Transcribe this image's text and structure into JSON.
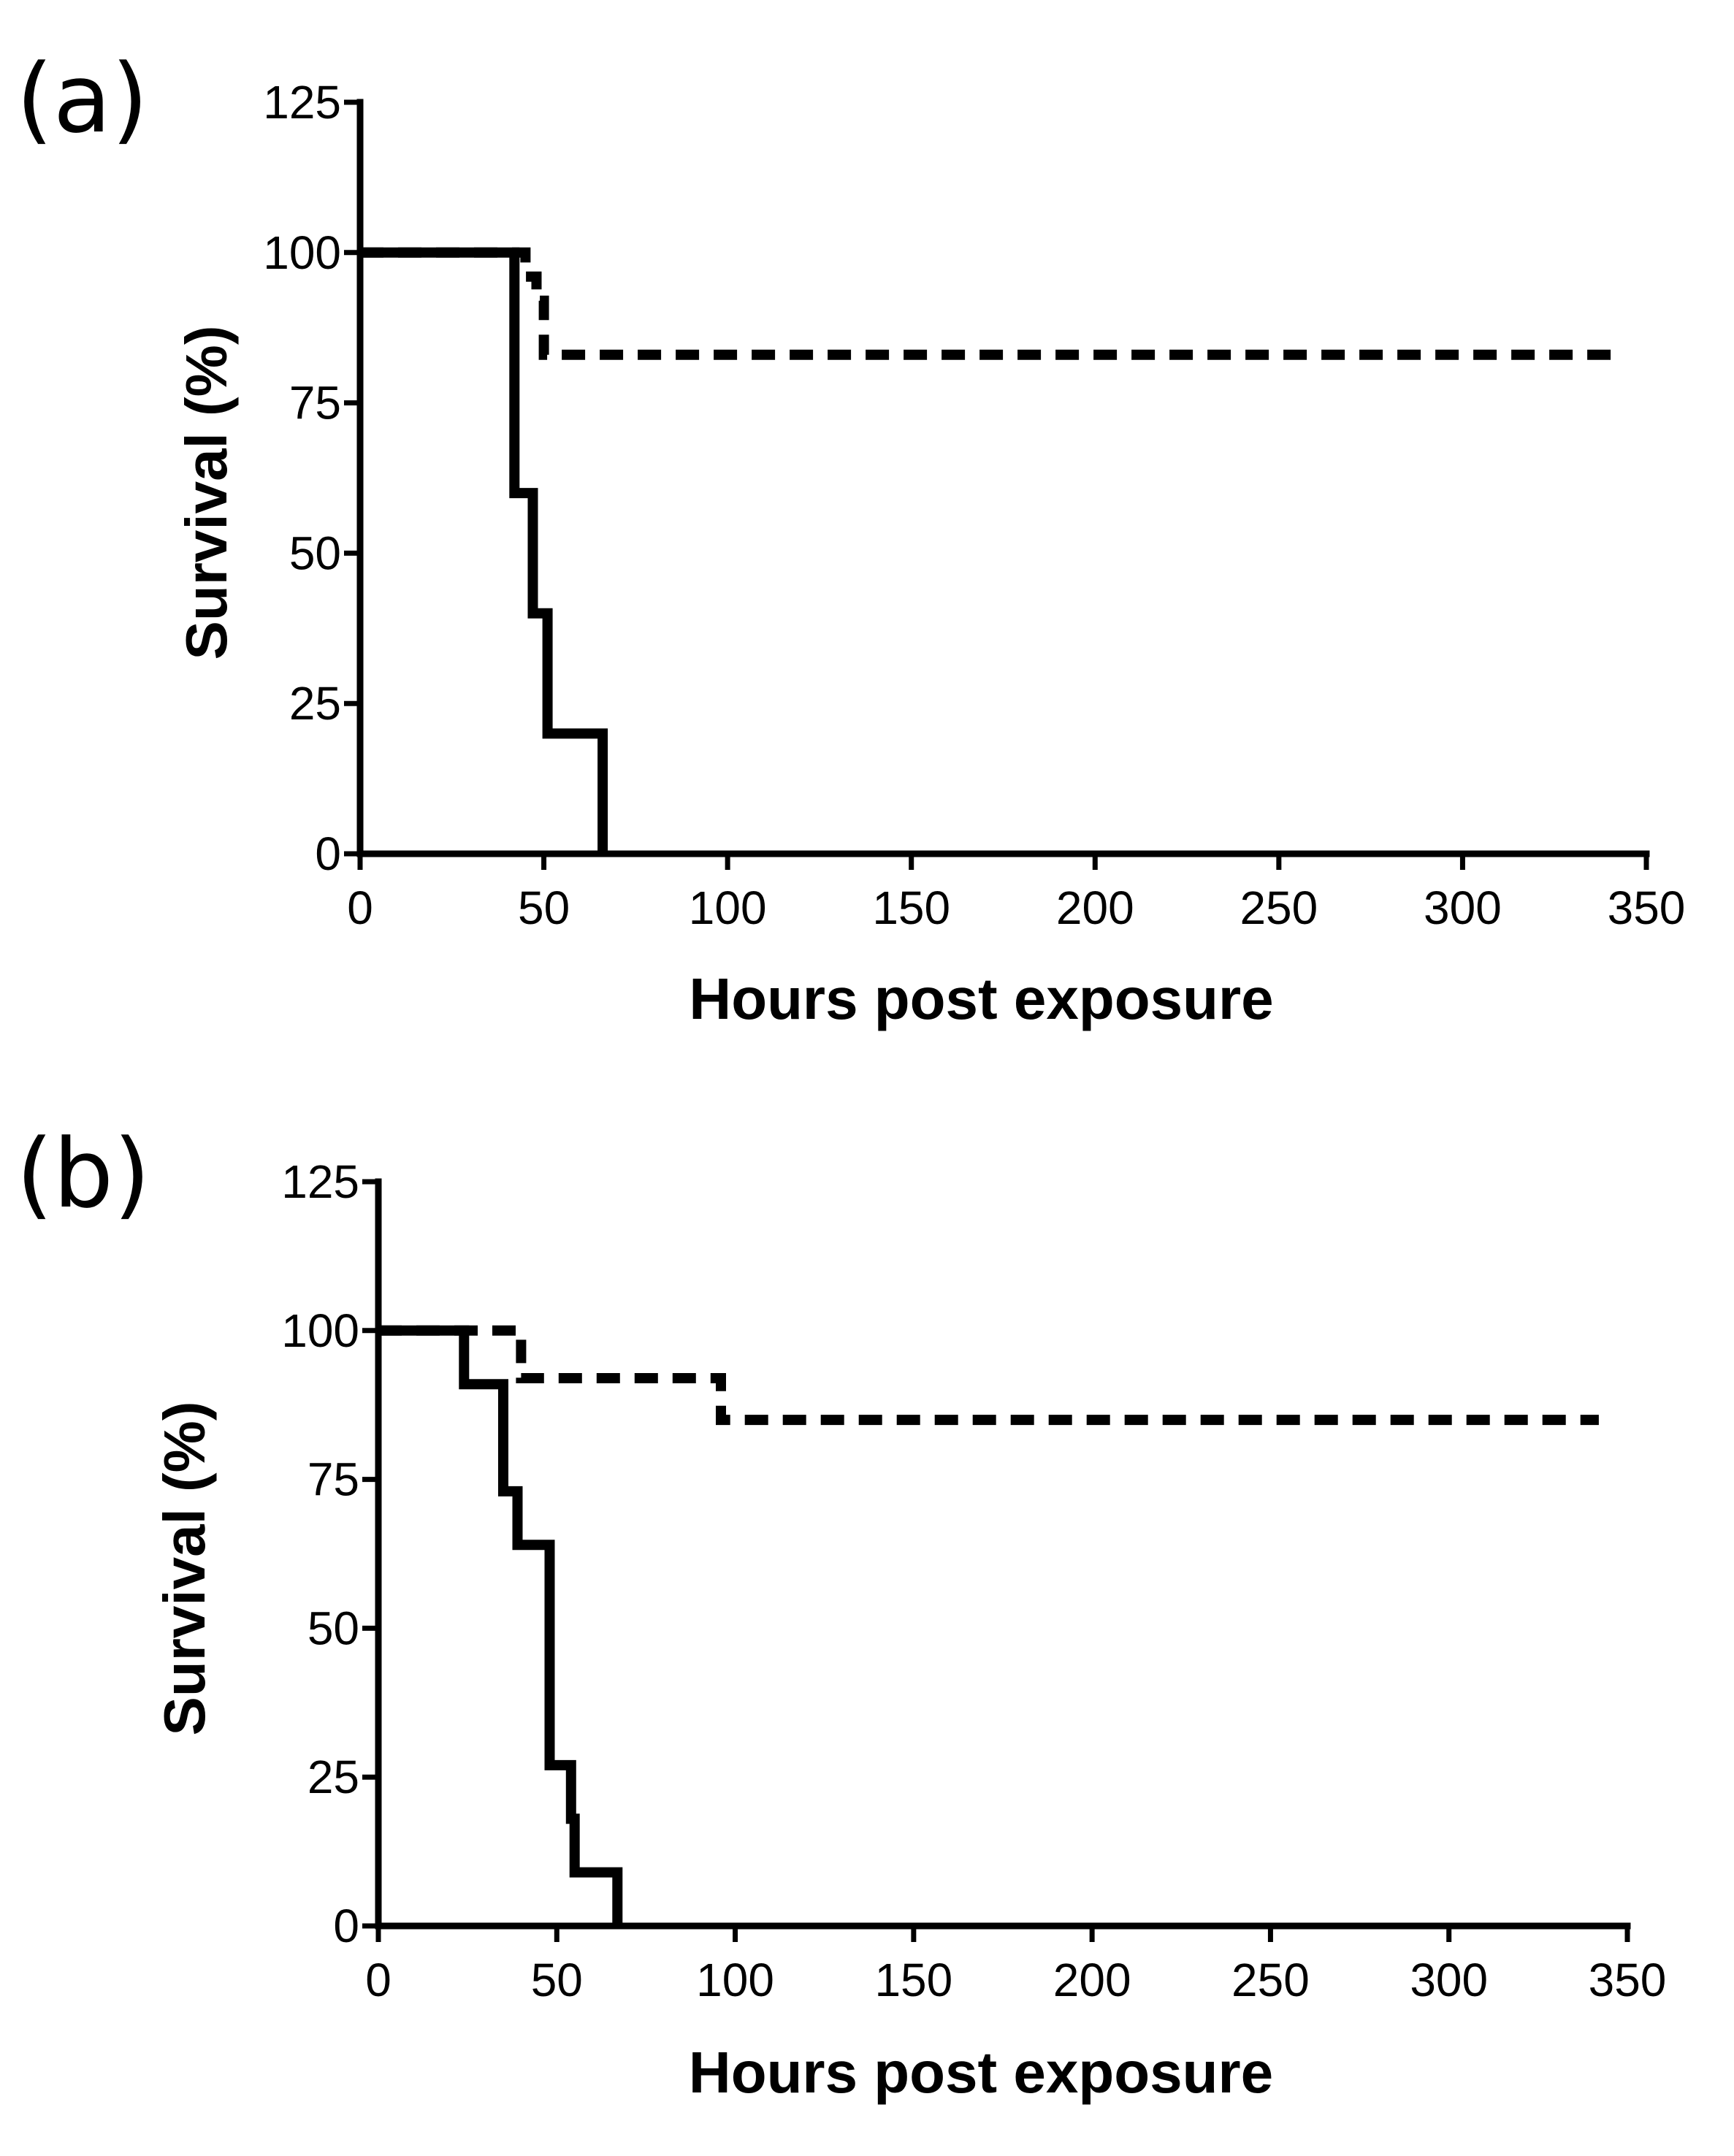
{
  "chart_data": [
    {
      "type": "line",
      "panel_label": "(a)",
      "xlabel": "Hours post exposure",
      "ylabel": "Survival (%)",
      "xlim": [
        0,
        350
      ],
      "ylim": [
        0,
        125
      ],
      "xticks": [
        "0",
        "50",
        "100",
        "150",
        "200",
        "250",
        "300",
        "350"
      ],
      "yticks": [
        "0",
        "25",
        "50",
        "75",
        "100",
        "125"
      ],
      "grid": false,
      "step": true,
      "series": [
        {
          "style": "solid",
          "x": [
            0,
            42,
            42,
            47,
            47,
            51,
            51,
            66,
            66
          ],
          "y": [
            100,
            100,
            60,
            60,
            40,
            40,
            20,
            20,
            0
          ]
        },
        {
          "style": "dashed",
          "x": [
            0,
            45,
            45,
            48,
            48,
            50,
            50,
            342
          ],
          "y": [
            100,
            100,
            96,
            96,
            92,
            92,
            83,
            83
          ]
        }
      ]
    },
    {
      "type": "line",
      "panel_label": "(b)",
      "xlabel": "Hours post exposure",
      "ylabel": "Survival (%)",
      "xlim": [
        0,
        350
      ],
      "ylim": [
        0,
        125
      ],
      "xticks": [
        "0",
        "50",
        "100",
        "150",
        "200",
        "250",
        "300",
        "350"
      ],
      "yticks": [
        "0",
        "25",
        "50",
        "75",
        "100",
        "125"
      ],
      "grid": false,
      "step": true,
      "series": [
        {
          "style": "solid",
          "x": [
            0,
            24,
            24,
            35,
            35,
            39,
            39,
            48,
            48,
            54,
            54,
            55,
            55,
            67,
            67
          ],
          "y": [
            100,
            100,
            91,
            91,
            73,
            73,
            64,
            64,
            27,
            27,
            18,
            18,
            9,
            9,
            0
          ]
        },
        {
          "style": "dashed",
          "x": [
            0,
            40,
            40,
            96,
            96,
            342
          ],
          "y": [
            100,
            100,
            92,
            92,
            85,
            85
          ]
        }
      ]
    }
  ]
}
